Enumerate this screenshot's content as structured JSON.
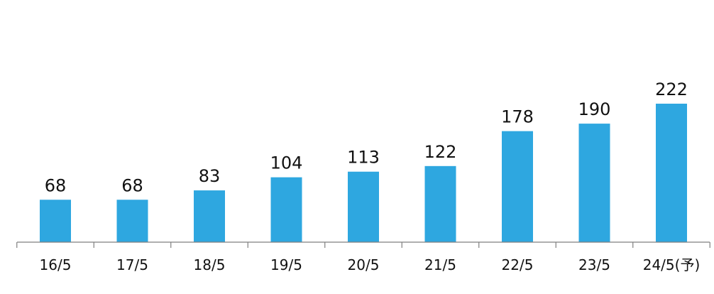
{
  "chart_data": {
    "type": "bar",
    "categories": [
      "16/5",
      "17/5",
      "18/5",
      "19/5",
      "20/5",
      "21/5",
      "22/5",
      "23/5",
      "24/5(予)"
    ],
    "values": [
      68,
      68,
      83,
      104,
      113,
      122,
      178,
      190,
      222
    ],
    "title": "",
    "xlabel": "",
    "ylabel": "",
    "ylim": [
      0,
      230
    ],
    "grid": false,
    "legend": "none",
    "bar_color": "#2EA7E0",
    "axis_color": "#7f7f7f",
    "show_data_labels": true
  }
}
